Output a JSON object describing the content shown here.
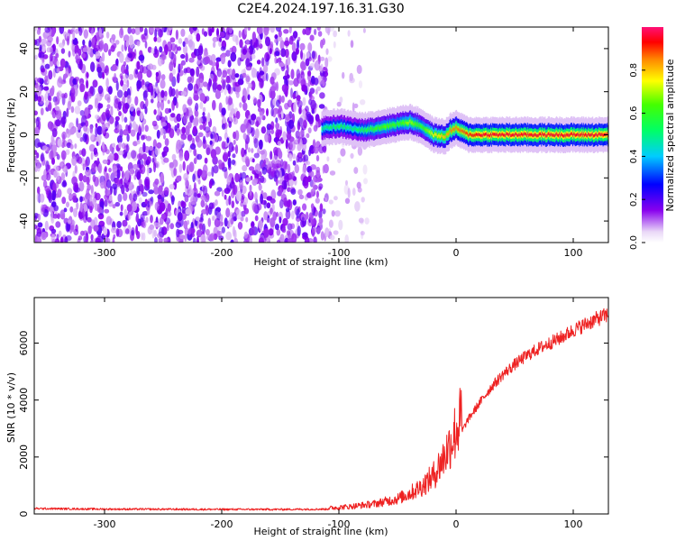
{
  "title": "C2E4.2024.197.16.31.G30",
  "chart_data": [
    {
      "type": "heatmap",
      "xlabel": "Height of straight line (km)",
      "ylabel": "Frequency (Hz)",
      "xlim": [
        -360,
        130
      ],
      "ylim": [
        -50,
        50
      ],
      "x_ticks": [
        -300,
        -200,
        -100,
        0,
        100
      ],
      "y_ticks": [
        -40,
        -20,
        0,
        20,
        40
      ],
      "colorbar": {
        "label": "Normalized spectral amplitude",
        "range": [
          0.0,
          1.0
        ],
        "ticks": [
          0.0,
          0.2,
          0.4,
          0.6,
          0.8
        ],
        "tick_labels": [
          "0.0",
          "0.2",
          "0.4",
          "0.6",
          "0.8"
        ],
        "colormap": "rainbow (purple to red)"
      },
      "features": {
        "noise_region_x": [
          -360,
          -110
        ],
        "noise_fade_x": [
          -110,
          -75
        ],
        "signal_ridge": {
          "x": [
            -115,
            -100,
            -90,
            -80,
            -70,
            -60,
            -50,
            -40,
            -30,
            -20,
            -10,
            -5,
            0,
            10,
            20,
            40,
            60,
            80,
            100,
            120,
            130
          ],
          "y": [
            3,
            4,
            3,
            2,
            3,
            4,
            5,
            6,
            4,
            0,
            -1,
            2,
            3,
            0,
            0,
            0,
            0,
            0,
            0,
            0,
            0
          ],
          "peak_amplitude": [
            0.5,
            0.55,
            0.5,
            0.55,
            0.6,
            0.65,
            0.6,
            0.7,
            0.6,
            0.75,
            0.8,
            0.85,
            0.85,
            0.9,
            0.95,
            0.95,
            0.95,
            0.95,
            0.95,
            0.95,
            0.95
          ]
        }
      }
    },
    {
      "type": "line",
      "xlabel": "Height of straight line (km)",
      "ylabel": "SNR (10 * v/v)",
      "xlim": [
        -360,
        130
      ],
      "ylim": [
        0,
        7600
      ],
      "x_ticks": [
        -300,
        -200,
        -100,
        0,
        100
      ],
      "y_ticks": [
        0,
        2000,
        4000,
        6000
      ],
      "color": "#ee2222",
      "series": [
        {
          "x": [
            -360,
            -300,
            -200,
            -150,
            -110,
            -90,
            -70,
            -50,
            -40,
            -30,
            -20,
            -10,
            0,
            10,
            20,
            30,
            40,
            50,
            60,
            70,
            80,
            90,
            100,
            110,
            120,
            130
          ],
          "values": [
            190,
            170,
            160,
            160,
            170,
            220,
            300,
            450,
            600,
            800,
            1100,
            1700,
            2500,
            3300,
            3900,
            4450,
            4900,
            5250,
            5550,
            5800,
            6000,
            6200,
            6450,
            6650,
            6850,
            7000
          ]
        }
      ]
    }
  ]
}
